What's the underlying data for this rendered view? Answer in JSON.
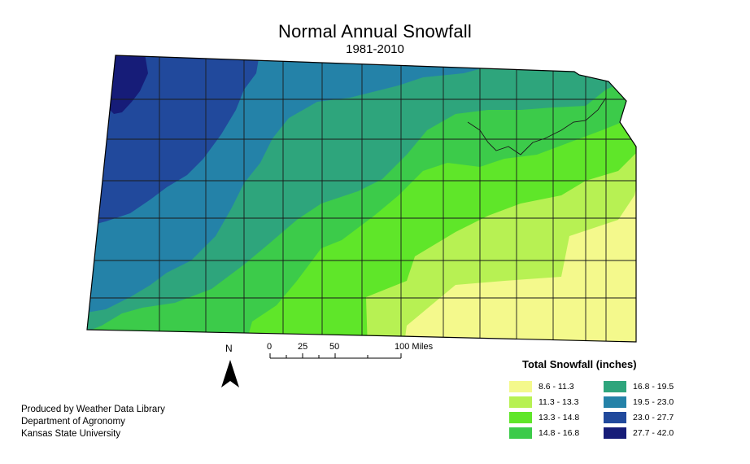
{
  "title": "Normal Annual Snowfall",
  "subtitle": "1981-2010",
  "north_arrow": {
    "letter": "N",
    "icon": "north-arrow-icon"
  },
  "scale_bar": {
    "labels": [
      "0",
      "25",
      "50",
      "100 Miles"
    ]
  },
  "legend": {
    "title": "Total Snowfall (inches)",
    "items": [
      {
        "label": "8.6 - 11.3",
        "color": "#f4f98c"
      },
      {
        "label": "11.3 - 13.3",
        "color": "#b7f153"
      },
      {
        "label": "13.3 - 14.8",
        "color": "#5fe629"
      },
      {
        "label": "14.8 - 16.8",
        "color": "#3ccb4a"
      },
      {
        "label": "16.8 - 19.5",
        "color": "#2ea57c"
      },
      {
        "label": "19.5 - 23.0",
        "color": "#2482a8"
      },
      {
        "label": "23.0 - 27.7",
        "color": "#21499c"
      },
      {
        "label": "27.7 - 42.0",
        "color": "#161c78"
      }
    ]
  },
  "credits": {
    "line1": "Produced by Weather Data Library",
    "line2": "Department of Agronomy",
    "line3": "Kansas State University"
  }
}
